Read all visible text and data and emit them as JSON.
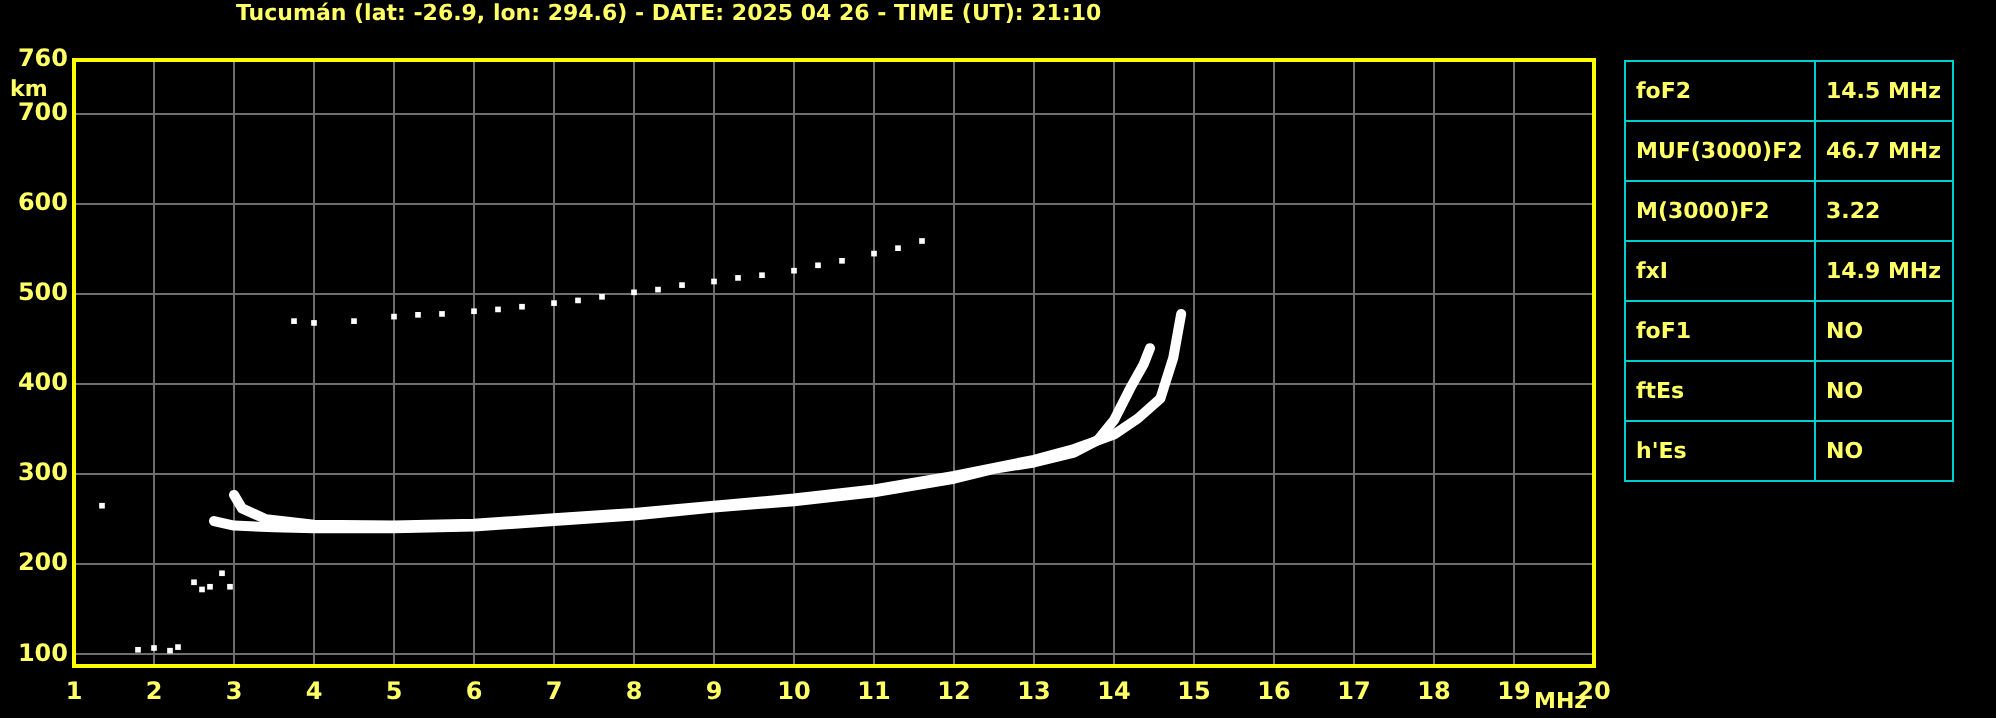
{
  "chart_data": {
    "type": "scatter",
    "title": "Tucumán (lat: -26.9, lon: 294.6) - DATE: 2025 04 26 - TIME (UT): 21:10",
    "xlabel": "MHz",
    "ylabel": "km",
    "xlim": [
      1,
      20
    ],
    "xticks": [
      1,
      2,
      3,
      4,
      5,
      6,
      7,
      8,
      9,
      10,
      11,
      12,
      13,
      14,
      15,
      16,
      17,
      18,
      19,
      20
    ],
    "ylim": [
      87,
      760
    ],
    "yticks": [
      100,
      200,
      300,
      400,
      500,
      600,
      700,
      760
    ],
    "grid": true,
    "legend": false,
    "marker": "square",
    "annotations": [
      "foF2",
      "14.5 MHz",
      "MUF(3000)F2",
      "46.7 MHz",
      "M(3000)F2",
      "3.22",
      "fxI",
      "14.9 MHz",
      "foF1",
      "NO",
      "ftEs",
      "NO",
      "h'Es",
      "NO"
    ],
    "series": [
      {
        "type": "line",
        "marker": "none",
        "color": "#ffffff",
        "x": [
          2.75,
          3,
          3.5,
          4,
          5,
          6,
          7,
          8,
          9,
          10,
          11,
          12,
          12.5,
          13,
          13.5,
          13.8,
          14,
          14.2,
          14.37,
          14.45
        ],
        "values": [
          248,
          243,
          241,
          240,
          240,
          242,
          248,
          254,
          263,
          270,
          280,
          295,
          306,
          313,
          324,
          338,
          360,
          395,
          422,
          440
        ]
      },
      {
        "type": "line",
        "marker": "none",
        "color": "#ffffff",
        "x": [
          3,
          3.1,
          3.4,
          4,
          5,
          6,
          7,
          8,
          9,
          10,
          11,
          12,
          13,
          13.5,
          14,
          14.3,
          14.58,
          14.74,
          14.84
        ],
        "values": [
          277,
          262,
          250,
          244,
          243,
          245,
          251,
          257,
          265,
          273,
          283,
          298,
          316,
          328,
          344,
          362,
          384,
          429,
          478
        ]
      },
      {
        "color": "#ffffff",
        "x": [
          3.75,
          4,
          4.5,
          5,
          5.3,
          5.6,
          6,
          6.3,
          6.6,
          7,
          7.3,
          7.6,
          8,
          8.3,
          8.6,
          9,
          9.3,
          9.6,
          10,
          10.3,
          10.6,
          11,
          11.3,
          11.6
        ],
        "values": [
          470,
          468,
          470,
          475,
          477,
          478,
          481,
          483,
          486,
          490,
          493,
          497,
          502,
          505,
          510,
          514,
          518,
          521,
          526,
          532,
          537,
          545,
          551,
          559
        ]
      },
      {
        "color": "#ffffff",
        "x": [
          1.35,
          1.8,
          2,
          2.2,
          2.3,
          2.5,
          2.6,
          2.7,
          2.85,
          2.95
        ],
        "values": [
          265,
          105,
          107,
          104,
          108,
          180,
          172,
          175,
          190,
          175
        ]
      }
    ]
  }
}
